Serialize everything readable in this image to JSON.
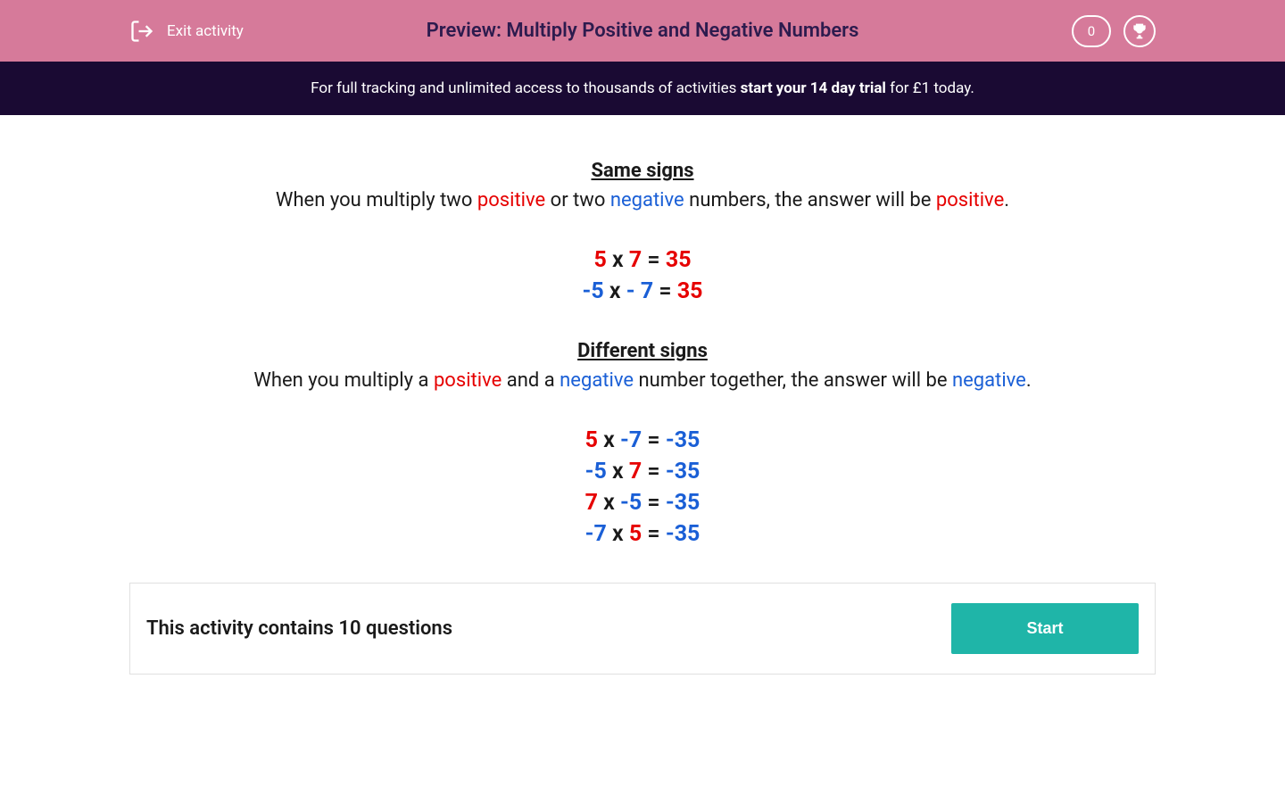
{
  "header": {
    "exit_label": "Exit activity",
    "title": "Preview: Multiply Positive and Negative Numbers",
    "score": "0"
  },
  "promo": {
    "prefix": "For full tracking and unlimited access to thousands of activities ",
    "bold": "start your 14 day trial",
    "suffix": " for £1 today."
  },
  "content": {
    "same_signs": {
      "title": "Same signs",
      "text_prefix": "When you multiply two ",
      "word_positive": "positive",
      "text_middle": " or two ",
      "word_negative": "negative",
      "text_middle2": " numbers, the answer will be ",
      "word_result": "positive",
      "text_suffix": ".",
      "equations": [
        {
          "a": "5",
          "a_sign": "positive",
          "op": " x ",
          "b": "7",
          "b_sign": "positive",
          "eq": " = ",
          "r": "35",
          "r_sign": "positive"
        },
        {
          "a": "-5",
          "a_sign": "negative",
          "op": " x ",
          "b": "- 7",
          "b_sign": "negative",
          "eq": " = ",
          "r": "35",
          "r_sign": "positive"
        }
      ]
    },
    "different_signs": {
      "title": "Different signs",
      "text_prefix": "When you multiply a ",
      "word_positive": "positive",
      "text_middle": " and a ",
      "word_negative": "negative",
      "text_middle2": " number together, the answer will be ",
      "word_result": "negative",
      "text_suffix": ".",
      "equations": [
        {
          "a": "5",
          "a_sign": "positive",
          "op": " x ",
          "b": "-7",
          "b_sign": "negative",
          "eq": " = ",
          "r": "-35",
          "r_sign": "negative"
        },
        {
          "a": "-5",
          "a_sign": "negative",
          "op": " x  ",
          "b": "7",
          "b_sign": "positive",
          "eq": " = ",
          "r": "-35",
          "r_sign": "negative"
        },
        {
          "a": "7",
          "a_sign": "positive",
          "op": " x ",
          "b": "-5",
          "b_sign": "negative",
          "eq": " = ",
          "r": "-35",
          "r_sign": "negative"
        },
        {
          "a": "-7",
          "a_sign": "negative",
          "op": " x  ",
          "b": "5",
          "b_sign": "positive",
          "eq": " = ",
          "r": "-35",
          "r_sign": "negative"
        }
      ]
    }
  },
  "activity": {
    "text": "This activity contains 10 questions",
    "button": "Start"
  },
  "colors": {
    "header_bg": "#d67a9a",
    "banner_bg": "#1a0a33",
    "positive": "#e60000",
    "negative": "#1a5fd6",
    "start_button": "#1fb5a8",
    "text": "#1a1a1a"
  }
}
